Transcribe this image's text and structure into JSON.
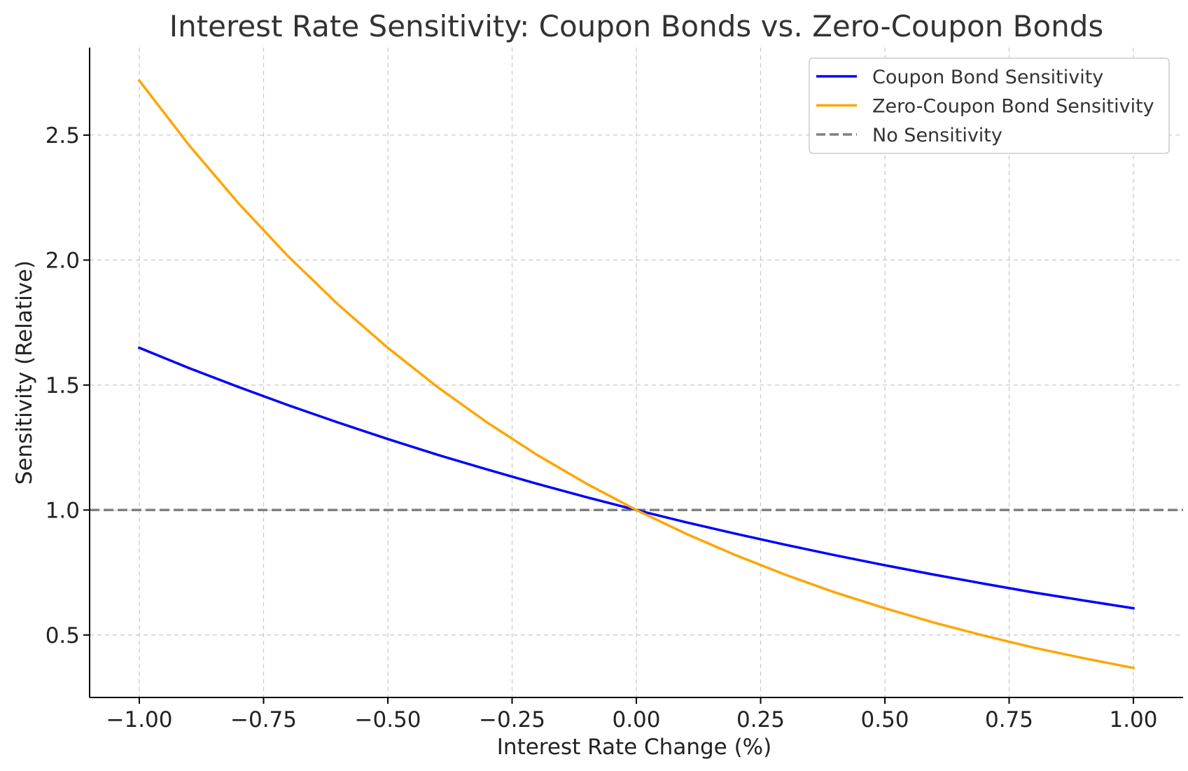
{
  "chart_data": {
    "type": "line",
    "title": "Interest Rate Sensitivity: Coupon Bonds vs. Zero-Coupon Bonds",
    "xlabel": "Interest Rate Change (%)",
    "ylabel": "Sensitivity (Relative)",
    "xlim": [
      -1.1,
      1.1
    ],
    "ylim": [
      0.25,
      2.85
    ],
    "x_ticks": [
      -1.0,
      -0.75,
      -0.5,
      -0.25,
      0.0,
      0.25,
      0.5,
      0.75,
      1.0
    ],
    "x_tick_labels": [
      "−1.00",
      "−0.75",
      "−0.50",
      "−0.25",
      "0.00",
      "0.25",
      "0.50",
      "0.75",
      "1.00"
    ],
    "y_ticks": [
      0.5,
      1.0,
      1.5,
      2.0,
      2.5
    ],
    "y_tick_labels": [
      "0.5",
      "1.0",
      "1.5",
      "2.0",
      "2.5"
    ],
    "grid": true,
    "legend_position": "top-right",
    "x": [
      -1.0,
      -0.9,
      -0.8,
      -0.7,
      -0.6,
      -0.5,
      -0.4,
      -0.3,
      -0.2,
      -0.1,
      0.0,
      0.1,
      0.2,
      0.3,
      0.4,
      0.5,
      0.6,
      0.7,
      0.8,
      0.9,
      1.0
    ],
    "series": [
      {
        "name": "Coupon Bond Sensitivity",
        "color": "#0000ff",
        "style": "solid",
        "values": [
          1.649,
          1.568,
          1.492,
          1.419,
          1.35,
          1.284,
          1.221,
          1.162,
          1.105,
          1.051,
          1.0,
          0.951,
          0.905,
          0.861,
          0.819,
          0.779,
          0.741,
          0.705,
          0.67,
          0.638,
          0.607
        ]
      },
      {
        "name": "Zero-Coupon Bond Sensitivity",
        "color": "#ffa500",
        "style": "solid",
        "values": [
          2.718,
          2.46,
          2.226,
          2.014,
          1.822,
          1.649,
          1.492,
          1.35,
          1.221,
          1.105,
          1.0,
          0.905,
          0.819,
          0.741,
          0.67,
          0.607,
          0.549,
          0.497,
          0.449,
          0.407,
          0.368
        ]
      },
      {
        "name": "No Sensitivity",
        "color": "#808080",
        "style": "dashed",
        "values": [
          1.0,
          1.0,
          1.0,
          1.0,
          1.0,
          1.0,
          1.0,
          1.0,
          1.0,
          1.0,
          1.0,
          1.0,
          1.0,
          1.0,
          1.0,
          1.0,
          1.0,
          1.0,
          1.0,
          1.0,
          1.0
        ]
      }
    ]
  }
}
